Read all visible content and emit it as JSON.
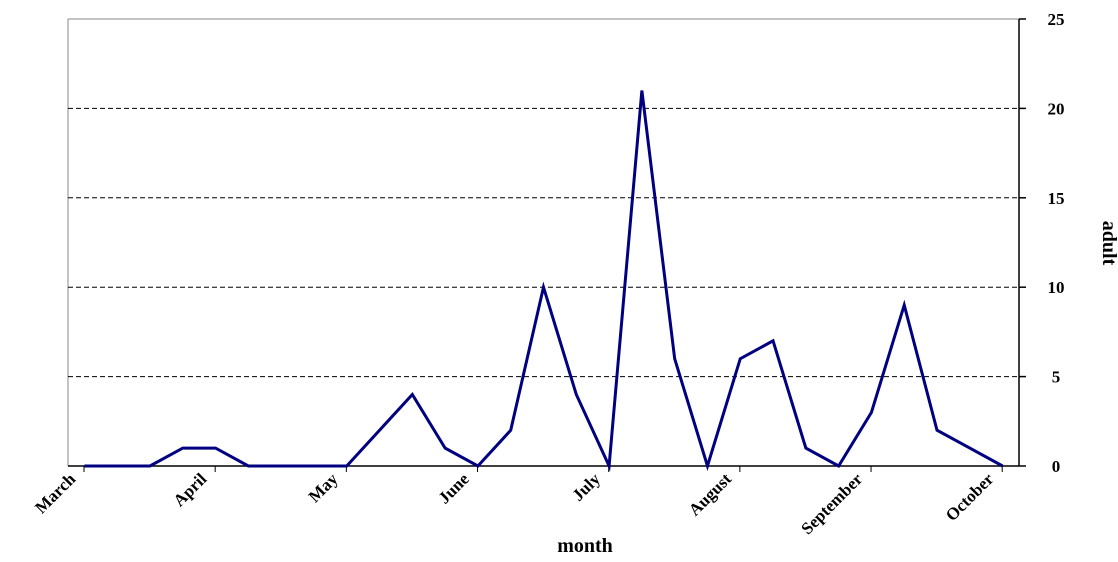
{
  "chart_data": {
    "type": "line",
    "x_label": "month",
    "y_label": "adult",
    "categories": [
      "March",
      null,
      null,
      null,
      "April",
      null,
      null,
      null,
      "May",
      null,
      null,
      null,
      "June",
      null,
      null,
      null,
      "July",
      null,
      null,
      null,
      "August",
      null,
      null,
      null,
      "September",
      null,
      null,
      null,
      "October"
    ],
    "series": [
      {
        "name": "adult",
        "color": "#000080",
        "values": [
          0,
          0,
          0,
          1,
          1,
          0,
          0,
          0,
          0,
          2,
          4,
          1,
          0,
          2,
          10,
          4,
          0,
          21,
          6,
          0,
          6,
          7,
          1,
          0,
          3,
          9,
          2,
          1,
          0
        ]
      }
    ],
    "ylim": [
      0,
      25
    ],
    "yticks": [
      0,
      5,
      10,
      15,
      20,
      25
    ],
    "y_axis_side": "right",
    "grid": true
  }
}
